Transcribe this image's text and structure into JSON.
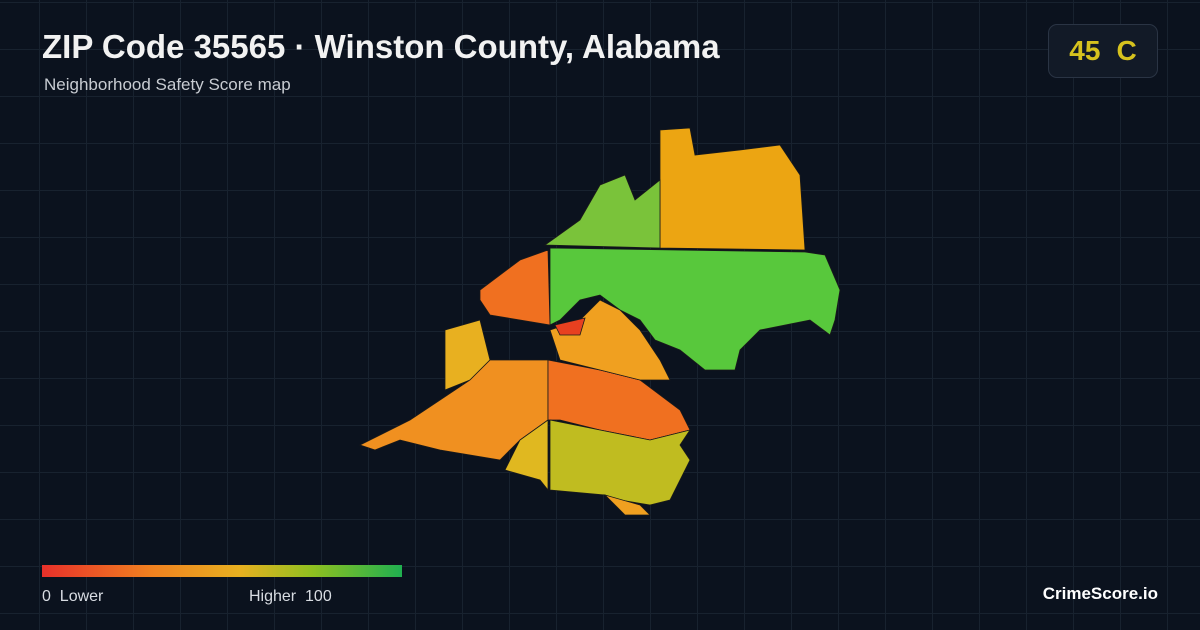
{
  "header": {
    "title": "ZIP Code 35565 · Winston County, Alabama",
    "subtitle": "Neighborhood Safety Score map"
  },
  "score": {
    "value": 45,
    "grade": "C"
  },
  "legend": {
    "min": 0,
    "min_label": "Lower",
    "max_label": "Higher",
    "max": 100
  },
  "brand": "CrimeScore.io"
}
